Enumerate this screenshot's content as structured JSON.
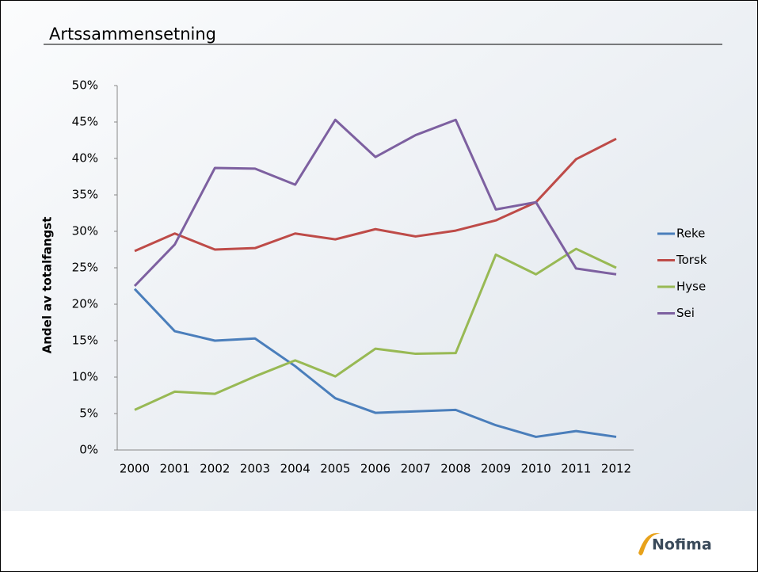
{
  "chart_data": {
    "type": "line",
    "title": "Artssammensetning",
    "ylabel": "Andel av totalfangst",
    "categories": [
      "2000",
      "2001",
      "2002",
      "2003",
      "2004",
      "2005",
      "2006",
      "2007",
      "2008",
      "2009",
      "2010",
      "2011",
      "2012"
    ],
    "series": [
      {
        "name": "Reke",
        "color": "#4a7ebb",
        "values": [
          22.1,
          16.3,
          15.0,
          15.3,
          11.5,
          7.1,
          5.1,
          5.3,
          5.5,
          3.4,
          1.8,
          2.6,
          1.8
        ]
      },
      {
        "name": "Torsk",
        "color": "#be4b48",
        "values": [
          27.3,
          29.7,
          27.5,
          27.7,
          29.7,
          28.9,
          30.3,
          29.3,
          30.1,
          31.5,
          34.0,
          39.9,
          42.7
        ]
      },
      {
        "name": "Hyse",
        "color": "#98b954",
        "values": [
          5.5,
          8.0,
          7.7,
          10.1,
          12.3,
          10.1,
          13.9,
          13.2,
          13.3,
          26.8,
          24.1,
          27.6,
          25.0
        ]
      },
      {
        "name": "Sei",
        "color": "#7d60a0",
        "values": [
          22.5,
          28.2,
          38.7,
          38.6,
          36.4,
          45.3,
          40.2,
          43.2,
          45.3,
          33.0,
          34.0,
          24.9,
          24.1
        ]
      }
    ],
    "ylim": [
      0,
      50
    ],
    "yticks": [
      {
        "value": 0,
        "label": "0%"
      },
      {
        "value": 5,
        "label": "5%"
      },
      {
        "value": 10,
        "label": "10%"
      },
      {
        "value": 15,
        "label": "15%"
      },
      {
        "value": 20,
        "label": "20%"
      },
      {
        "value": 25,
        "label": "25%"
      },
      {
        "value": 30,
        "label": "30%"
      },
      {
        "value": 35,
        "label": "35%"
      },
      {
        "value": 40,
        "label": "40%"
      },
      {
        "value": 45,
        "label": "45%"
      },
      {
        "value": 50,
        "label": "50%"
      }
    ],
    "grid": false,
    "legend": "right",
    "logo": "Nofima"
  }
}
